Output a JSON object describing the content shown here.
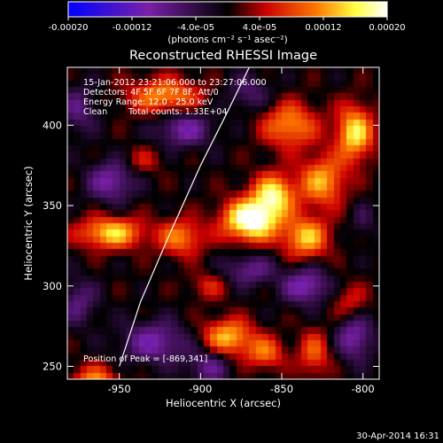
{
  "chart_data": {
    "type": "heatmap",
    "title": "Reconstructed RHESSI Image",
    "xlabel": "Heliocentric X (arcsec)",
    "ylabel": "Heliocentric Y (arcsec)",
    "xlim": [
      -982,
      -790
    ],
    "ylim": [
      242,
      436
    ],
    "xticks": [
      -950,
      -900,
      -850,
      -800
    ],
    "yticks": [
      250,
      300,
      350,
      400
    ],
    "xtick_labels": [
      "-950",
      "-900",
      "-850",
      "-800"
    ],
    "ytick_labels": [
      "250",
      "300",
      "350",
      "400"
    ],
    "colorbar": {
      "range": [
        -0.0002,
        0.0002
      ],
      "ticks": [
        -0.0002,
        -0.00012,
        -4e-05,
        4e-05,
        0.00012,
        0.0002
      ],
      "tick_labels": [
        "-0.00020",
        "-0.00012",
        "-4.0e-05",
        "4.0e-05",
        "0.00012",
        "0.00020"
      ],
      "units": "(photons cm⁻² s⁻¹ asec⁻²)",
      "colors": [
        "#0000ff",
        "#7a20a8",
        "#000000",
        "#cc0000",
        "#ff7a00",
        "#ffff40",
        "#ffffff"
      ]
    },
    "annotations": {
      "time_range": "15-Jan-2012 23:21:06.000 to 23:27:06.000",
      "detectors": "Detectors: 4F 5F 6F 7F 8F, Att/0",
      "energy_range": "Energy Range: 12.0 - 25.0 keV",
      "method": "Clean",
      "total_counts": "Total counts: 1.33E+04",
      "peak_position": "Position of Peak = [-869,341]"
    },
    "peak": {
      "x": -869,
      "y": 341
    },
    "limb_curve": {
      "x": [
        -950,
        -937,
        -920,
        -900,
        -885,
        -870
      ],
      "y": [
        250,
        290,
        330,
        375,
        405,
        436
      ]
    },
    "sources": [
      {
        "x": -869,
        "y": 341,
        "amp": 0.00022,
        "sx": 12,
        "sy": 9
      },
      {
        "x": -855,
        "y": 357,
        "amp": 0.00016,
        "sx": 9,
        "sy": 9
      },
      {
        "x": -835,
        "y": 330,
        "amp": 0.00014,
        "sx": 10,
        "sy": 9
      },
      {
        "x": -825,
        "y": 365,
        "amp": 0.00013,
        "sx": 10,
        "sy": 11
      },
      {
        "x": -805,
        "y": 395,
        "amp": 0.00016,
        "sx": 8,
        "sy": 12
      },
      {
        "x": -845,
        "y": 400,
        "amp": 0.00012,
        "sx": 12,
        "sy": 10
      },
      {
        "x": -955,
        "y": 333,
        "amp": 0.00015,
        "sx": 14,
        "sy": 7
      },
      {
        "x": -912,
        "y": 330,
        "amp": 0.00011,
        "sx": 10,
        "sy": 8
      },
      {
        "x": -922,
        "y": 418,
        "amp": 0.00012,
        "sx": 16,
        "sy": 8
      },
      {
        "x": -935,
        "y": 378,
        "amp": 5e-05,
        "sx": 8,
        "sy": 6
      },
      {
        "x": -883,
        "y": 268,
        "amp": 0.00014,
        "sx": 11,
        "sy": 8
      },
      {
        "x": -860,
        "y": 258,
        "amp": 0.0001,
        "sx": 8,
        "sy": 7
      },
      {
        "x": -895,
        "y": 300,
        "amp": 6e-05,
        "sx": 8,
        "sy": 6
      },
      {
        "x": -965,
        "y": 240,
        "amp": 0.00012,
        "sx": 10,
        "sy": 7
      },
      {
        "x": -830,
        "y": 258,
        "amp": 9e-05,
        "sx": 7,
        "sy": 10
      },
      {
        "x": -808,
        "y": 290,
        "amp": 6e-05,
        "sx": 8,
        "sy": 8
      },
      {
        "x": -910,
        "y": 398,
        "amp": -0.0001,
        "sx": 12,
        "sy": 8
      },
      {
        "x": -955,
        "y": 365,
        "amp": -0.0001,
        "sx": 10,
        "sy": 9
      },
      {
        "x": -928,
        "y": 265,
        "amp": -0.0001,
        "sx": 14,
        "sy": 9
      },
      {
        "x": -895,
        "y": 250,
        "amp": -8e-05,
        "sx": 9,
        "sy": 8
      },
      {
        "x": -870,
        "y": 310,
        "amp": -8e-05,
        "sx": 11,
        "sy": 7
      },
      {
        "x": -835,
        "y": 300,
        "amp": -0.00011,
        "sx": 10,
        "sy": 8
      },
      {
        "x": -805,
        "y": 268,
        "amp": -0.0001,
        "sx": 8,
        "sy": 10
      },
      {
        "x": -870,
        "y": 420,
        "amp": -6e-05,
        "sx": 10,
        "sy": 8
      },
      {
        "x": -975,
        "y": 410,
        "amp": -7e-05,
        "sx": 8,
        "sy": 10
      },
      {
        "x": -975,
        "y": 290,
        "amp": -7e-05,
        "sx": 8,
        "sy": 10
      },
      {
        "x": -800,
        "y": 340,
        "amp": -4e-05,
        "sx": 5,
        "sy": 8
      }
    ]
  },
  "footer": {
    "date_stamp": "30-Apr-2014 16:31"
  }
}
